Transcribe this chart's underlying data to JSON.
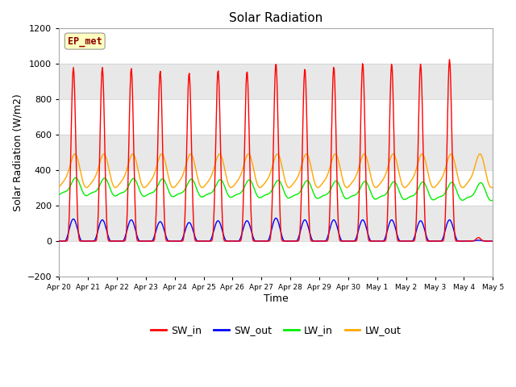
{
  "title": "Solar Radiation",
  "xlabel": "Time",
  "ylabel": "Solar Radiation (W/m2)",
  "ylim": [
    -200,
    1200
  ],
  "yticks": [
    -200,
    0,
    200,
    400,
    600,
    800,
    1000,
    1200
  ],
  "label_box_text": "EP_met",
  "series": {
    "SW_in": {
      "color": "#ff0000",
      "label": "SW_in"
    },
    "SW_out": {
      "color": "#0000ff",
      "label": "SW_out"
    },
    "LW_in": {
      "color": "#00ee00",
      "label": "LW_in"
    },
    "LW_out": {
      "color": "#ffa500",
      "label": "LW_out"
    }
  },
  "x_tick_labels": [
    "Apr 20",
    "Apr 21",
    "Apr 22",
    "Apr 23",
    "Apr 24",
    "Apr 25",
    "Apr 26",
    "Apr 27",
    "Apr 28",
    "Apr 29",
    "Apr 30",
    "May 1",
    "May 2",
    "May 3",
    "May 4",
    "May 5"
  ],
  "n_days": 15,
  "background_color": "#ffffff",
  "plot_bg_color": "#ffffff",
  "band_colors": [
    "#ffffff",
    "#e8e8e8"
  ],
  "SW_in_peaks": [
    980,
    980,
    975,
    960,
    950,
    965,
    960,
    1005,
    975,
    985,
    1005,
    1000,
    1000,
    1025,
    20
  ],
  "SW_out_peaks": [
    125,
    120,
    120,
    110,
    105,
    115,
    115,
    130,
    120,
    120,
    120,
    120,
    115,
    120,
    5
  ],
  "LW_in_base": 300,
  "LW_in_amp": 45,
  "LW_out_base": 385,
  "LW_out_amp": 90
}
